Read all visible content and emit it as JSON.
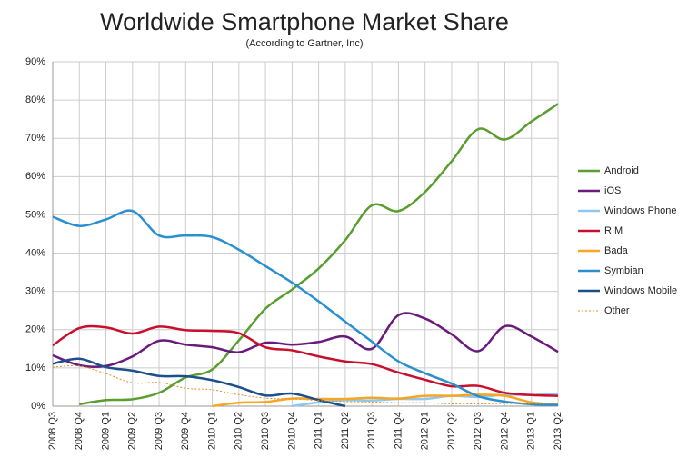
{
  "chart_data": {
    "type": "line",
    "title": "Worldwide Smartphone Market Share",
    "subtitle": "(According to Gartner, Inc)",
    "categories": [
      "2008 Q3",
      "2008 Q4",
      "2009 Q1",
      "2009 Q2",
      "2009 Q3",
      "2009 Q4",
      "2010 Q1",
      "2010 Q2",
      "2010 Q3",
      "2010 Q4",
      "2011 Q1",
      "2011 Q2",
      "2011 Q3",
      "2011 Q4",
      "2012 Q1",
      "2012 Q2",
      "2012 Q3",
      "2012 Q4",
      "2013 Q1",
      "2013 Q2"
    ],
    "ylim": [
      0,
      90
    ],
    "yticks": [
      {
        "value": 0,
        "label": "0%"
      },
      {
        "value": 10,
        "label": "10%"
      },
      {
        "value": 20,
        "label": "20%"
      },
      {
        "value": 30,
        "label": "30%"
      },
      {
        "value": 40,
        "label": "40%"
      },
      {
        "value": 50,
        "label": "50%"
      },
      {
        "value": 60,
        "label": "60%"
      },
      {
        "value": 70,
        "label": "70%"
      },
      {
        "value": 80,
        "label": "80%"
      },
      {
        "value": 90,
        "label": "90%"
      }
    ],
    "grid": true,
    "legend": "right",
    "series": [
      {
        "name": "Android",
        "color": "#5a9e2f",
        "values": [
          null,
          0.5,
          1.6,
          1.8,
          3.5,
          7.5,
          9.6,
          17.2,
          25.5,
          30.5,
          36,
          43.4,
          52.5,
          51,
          56,
          64,
          72.4,
          69.7,
          74.4,
          79
        ]
      },
      {
        "name": "iOS",
        "color": "#6a1a7c",
        "values": [
          13.3,
          10.7,
          10.5,
          13,
          17.1,
          16.1,
          15.4,
          14.1,
          16.6,
          16.1,
          16.8,
          18.2,
          15,
          23.8,
          22.9,
          18.8,
          14.4,
          20.9,
          18.2,
          14.2
        ]
      },
      {
        "name": "Windows Phone",
        "color": "#8ec8f0",
        "values": [
          null,
          null,
          null,
          null,
          null,
          null,
          null,
          null,
          null,
          0,
          1,
          1.6,
          1.5,
          1.9,
          1.9,
          2.7,
          2.4,
          3,
          2.9,
          3.3
        ]
      },
      {
        "name": "RIM",
        "color": "#c8102e",
        "values": [
          15.9,
          20.4,
          20.6,
          19,
          20.8,
          19.9,
          19.7,
          19.1,
          15.4,
          14.6,
          13,
          11.7,
          11,
          8.8,
          6.9,
          5.2,
          5.3,
          3.5,
          2.9,
          2.7
        ]
      },
      {
        "name": "Bada",
        "color": "#f5a623",
        "values": [
          null,
          null,
          null,
          null,
          null,
          null,
          0,
          0.9,
          1.1,
          2,
          1.9,
          1.9,
          2.2,
          2,
          2.7,
          2.7,
          3,
          2.7,
          1,
          0.4
        ]
      },
      {
        "name": "Symbian",
        "color": "#2a8fd0",
        "values": [
          49.5,
          47.1,
          48.8,
          51,
          44.6,
          44.6,
          44.2,
          40.9,
          36.6,
          32.3,
          27.4,
          22.1,
          16.9,
          11.7,
          8.6,
          5.9,
          2.6,
          1.2,
          0.5,
          0.3
        ]
      },
      {
        "name": "Windows Mobile",
        "color": "#1d4f8a",
        "values": [
          11.1,
          12.4,
          10.2,
          9.3,
          7.9,
          7.8,
          6.8,
          5,
          2.8,
          3.3,
          1.6,
          0,
          null,
          null,
          null,
          null,
          null,
          null,
          null,
          null
        ]
      },
      {
        "name": "Other",
        "color": "#e0902a",
        "dashed": true,
        "values": [
          10.2,
          10.5,
          8.5,
          6.1,
          6.2,
          4.7,
          4.3,
          3,
          2.1,
          1.9,
          1.5,
          1.2,
          1.1,
          0.9,
          0.9,
          0.6,
          0.6,
          0.7,
          0.6,
          0.7
        ]
      }
    ]
  }
}
